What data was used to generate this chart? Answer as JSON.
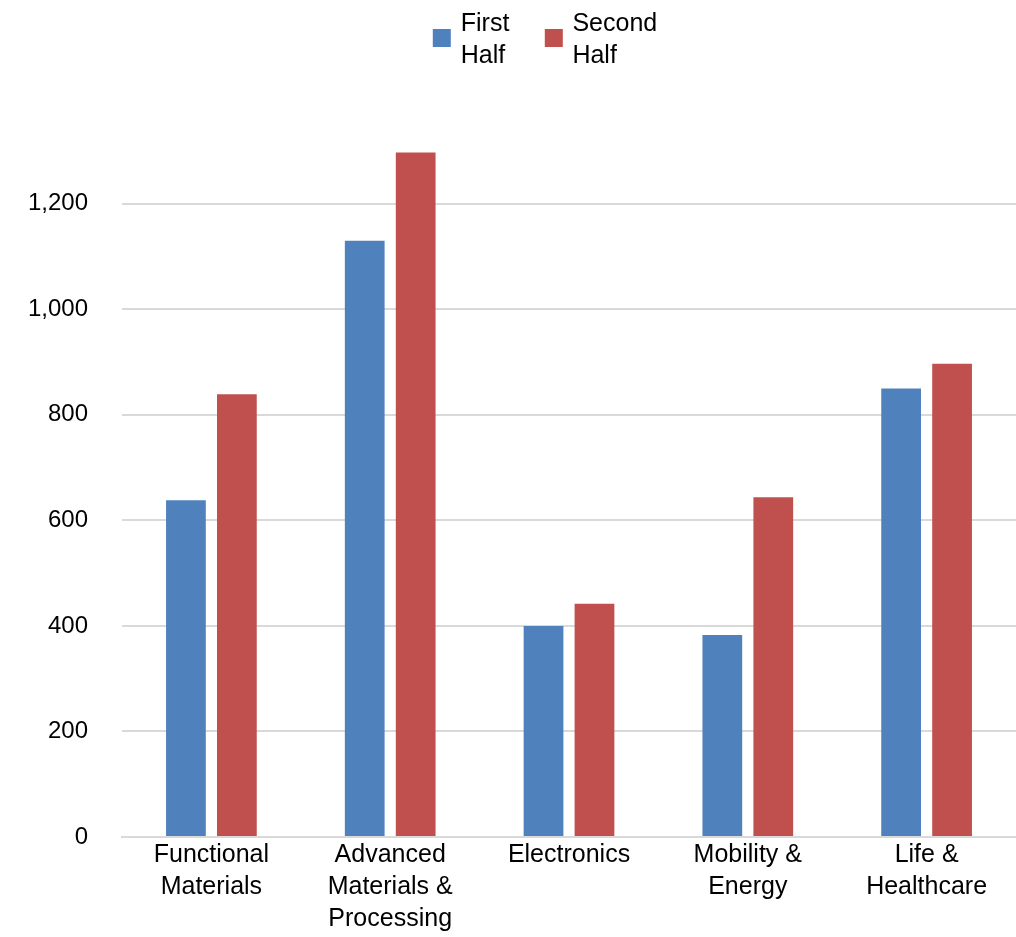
{
  "chart_data": {
    "type": "bar",
    "categories": [
      "Functional Materials",
      "Advanced Materials & Processing",
      "Electronics",
      "Mobility & Energy",
      "Life & Healthcare"
    ],
    "series": [
      {
        "name": "First Half",
        "color": "#4f81bd",
        "values": [
          638,
          1130,
          400,
          383,
          850
        ]
      },
      {
        "name": "Second Half",
        "color": "#c0504d",
        "values": [
          839,
          1297,
          442,
          644,
          897
        ]
      }
    ],
    "ylim": [
      0,
      1300
    ],
    "yticks": [
      0,
      200,
      400,
      600,
      800,
      {
        "value": 1000,
        "label": "1,000"
      },
      {
        "value": 1200,
        "label": "1,200"
      }
    ],
    "grid": "y",
    "legend": "top"
  }
}
